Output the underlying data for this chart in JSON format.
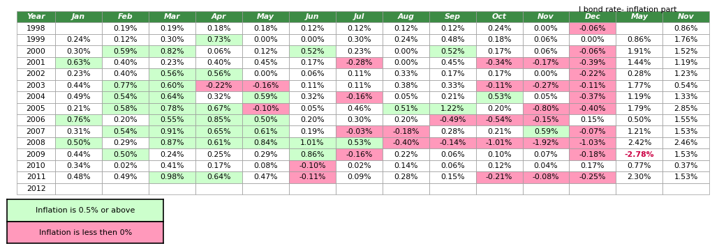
{
  "title": "I bond rate- inflation part",
  "header": [
    "Year",
    "Jan",
    "Feb",
    "Mar",
    "Apr",
    "May",
    "Jun",
    "Jul",
    "Aug",
    "Sep",
    "Oct",
    "Nov",
    "Dec",
    "May",
    "Nov"
  ],
  "rows": [
    [
      "1998",
      "",
      "0.19%",
      "0.19%",
      "0.18%",
      "0.18%",
      "0.12%",
      "0.12%",
      "0.12%",
      "0.12%",
      "0.24%",
      "0.00%",
      "-0.06%",
      "",
      "0.86%"
    ],
    [
      "1999",
      "0.24%",
      "0.12%",
      "0.30%",
      "0.73%",
      "0.00%",
      "0.00%",
      "0.30%",
      "0.24%",
      "0.48%",
      "0.18%",
      "0.06%",
      "0.00%",
      "0.86%",
      "1.76%"
    ],
    [
      "2000",
      "0.30%",
      "0.59%",
      "0.82%",
      "0.06%",
      "0.12%",
      "0.52%",
      "0.23%",
      "0.00%",
      "0.52%",
      "0.17%",
      "0.06%",
      "-0.06%",
      "1.91%",
      "1.52%"
    ],
    [
      "2001",
      "0.63%",
      "0.40%",
      "0.23%",
      "0.40%",
      "0.45%",
      "0.17%",
      "-0.28%",
      "0.00%",
      "0.45%",
      "-0.34%",
      "-0.17%",
      "-0.39%",
      "1.44%",
      "1.19%"
    ],
    [
      "2002",
      "0.23%",
      "0.40%",
      "0.56%",
      "0.56%",
      "0.00%",
      "0.06%",
      "0.11%",
      "0.33%",
      "0.17%",
      "0.17%",
      "0.00%",
      "-0.22%",
      "0.28%",
      "1.23%"
    ],
    [
      "2003",
      "0.44%",
      "0.77%",
      "0.60%",
      "-0.22%",
      "-0.16%",
      "0.11%",
      "0.11%",
      "0.38%",
      "0.33%",
      "-0.11%",
      "-0.27%",
      "-0.11%",
      "1.77%",
      "0.54%"
    ],
    [
      "2004",
      "0.49%",
      "0.54%",
      "0.64%",
      "0.32%",
      "0.59%",
      "0.32%",
      "-0.16%",
      "0.05%",
      "0.21%",
      "0.53%",
      "0.05%",
      "-0.37%",
      "1.19%",
      "1.33%"
    ],
    [
      "2005",
      "0.21%",
      "0.58%",
      "0.78%",
      "0.67%",
      "-0.10%",
      "0.05%",
      "0.46%",
      "0.51%",
      "1.22%",
      "0.20%",
      "-0.80%",
      "-0.40%",
      "1.79%",
      "2.85%"
    ],
    [
      "2006",
      "0.76%",
      "0.20%",
      "0.55%",
      "0.85%",
      "0.50%",
      "0.20%",
      "0.30%",
      "0.20%",
      "-0.49%",
      "-0.54%",
      "-0.15%",
      "0.15%",
      "0.50%",
      "1.55%"
    ],
    [
      "2007",
      "0.31%",
      "0.54%",
      "0.91%",
      "0.65%",
      "0.61%",
      "0.19%",
      "-0.03%",
      "-0.18%",
      "0.28%",
      "0.21%",
      "0.59%",
      "-0.07%",
      "1.21%",
      "1.53%"
    ],
    [
      "2008",
      "0.50%",
      "0.29%",
      "0.87%",
      "0.61%",
      "0.84%",
      "1.01%",
      "0.53%",
      "-0.40%",
      "-0.14%",
      "-1.01%",
      "-1.92%",
      "-1.03%",
      "2.42%",
      "2.46%"
    ],
    [
      "2009",
      "0.44%",
      "0.50%",
      "0.24%",
      "0.25%",
      "0.29%",
      "0.86%",
      "-0.16%",
      "0.22%",
      "0.06%",
      "0.10%",
      "0.07%",
      "-0.18%",
      "-2.78%",
      "1.53%"
    ],
    [
      "2010",
      "0.34%",
      "0.02%",
      "0.41%",
      "0.17%",
      "0.08%",
      "-0.10%",
      "0.02%",
      "0.14%",
      "0.06%",
      "0.12%",
      "0.04%",
      "0.17%",
      "0.77%",
      "0.37%"
    ],
    [
      "2011",
      "0.48%",
      "0.49%",
      "0.98%",
      "0.64%",
      "0.47%",
      "-0.11%",
      "0.09%",
      "0.28%",
      "0.15%",
      "-0.21%",
      "-0.08%",
      "-0.25%",
      "2.30%",
      "1.53%"
    ],
    [
      "2012",
      "",
      "",
      "",
      "",
      "",
      "",
      "",
      "",
      "",
      "",
      "",
      "",
      "",
      ""
    ]
  ],
  "green_threshold": 0.5,
  "pink_threshold": 0.0,
  "header_bg": "#3D8B45",
  "header_fg": "#FFFFFF",
  "green_color": "#CCFFCC",
  "pink_color": "#FF99BB",
  "special_pink_text_cells": [
    [
      11,
      13
    ]
  ],
  "legend_green_label": "Inflation is 0.5% or above",
  "legend_pink_label": "Inflation is less then 0%",
  "legend_green_color": "#CCFFCC",
  "legend_pink_color": "#FF99BB"
}
